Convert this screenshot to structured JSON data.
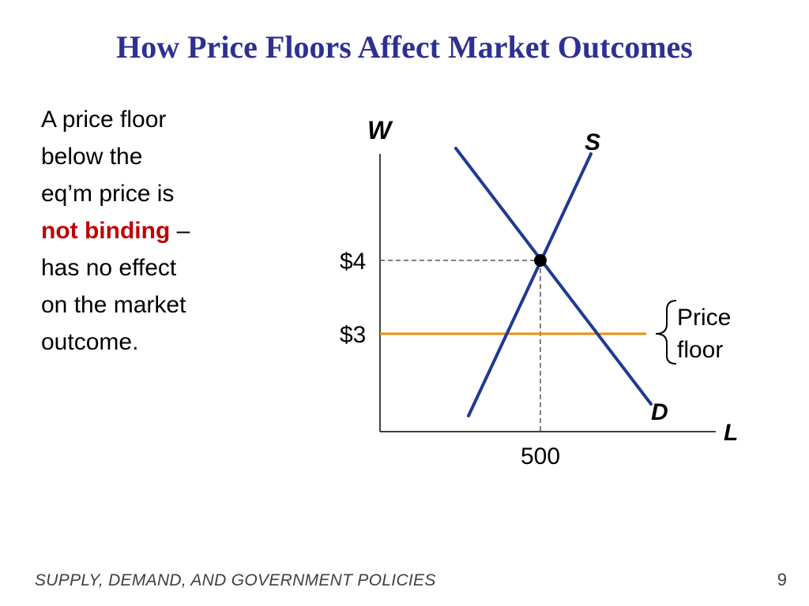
{
  "slide": {
    "title": "How Price Floors Affect Market Outcomes",
    "body_lines": {
      "line1": "A price floor",
      "line2": "below the",
      "line3": "eq’m price is",
      "emphasis": "not binding",
      "dash": " –",
      "line5": "has no effect",
      "line6": "on the market",
      "line7": "outcome."
    },
    "emphasis_color": "#c00000",
    "title_color": "#2e3192",
    "footer": "SUPPLY, DEMAND, AND GOVERNMENT POLICIES",
    "page_number": "9"
  },
  "diagram": {
    "y_axis_label": "W",
    "x_axis_label": "L",
    "supply_label": "S",
    "demand_label": "D",
    "equilibrium_price_label": "$4",
    "floor_price_label": "$3",
    "equilibrium_quantity_label": "500",
    "floor_annotation_line1": "Price",
    "floor_annotation_line2": "floor",
    "curve_color": "#1f3a93",
    "floor_color": "#e8900c",
    "guide_color": "#555555"
  }
}
